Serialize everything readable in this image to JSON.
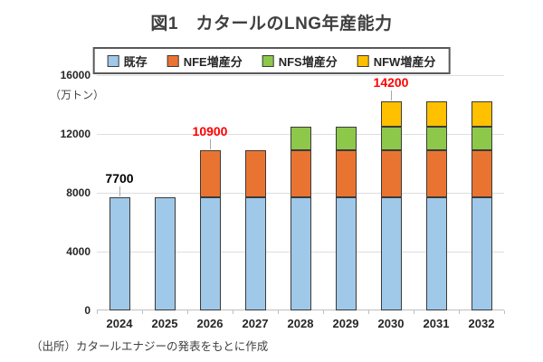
{
  "title": "図1　カタールのLNG年産能力",
  "unit_label": "（万トン）",
  "source_note": "（出所）カタールエナジーの発表をもとに作成",
  "colors": {
    "existing": "#A0C8E8",
    "nfe": "#E97432",
    "nfs": "#8DC84B",
    "nfw": "#FFC000",
    "annotation_red": "#FF0000",
    "annotation_black": "#000000",
    "bar_border": "#3B3B3B"
  },
  "chart_data": {
    "type": "bar",
    "stacked": true,
    "title": "図1　カタールのLNG年産能力",
    "xlabel": "",
    "ylabel": "（万トン）",
    "ylim": [
      0,
      16000
    ],
    "yticks": [
      0,
      4000,
      8000,
      12000,
      16000
    ],
    "grid": true,
    "legend_position": "top",
    "categories": [
      "2024",
      "2025",
      "2026",
      "2027",
      "2028",
      "2029",
      "2030",
      "2031",
      "2032"
    ],
    "series": [
      {
        "name": "既存",
        "color": "#A0C8E8",
        "values": [
          7700,
          7700,
          7700,
          7700,
          7700,
          7700,
          7700,
          7700,
          7700
        ]
      },
      {
        "name": "NFE増産分",
        "color": "#E97432",
        "values": [
          0,
          0,
          3200,
          3200,
          3200,
          3200,
          3200,
          3200,
          3200
        ]
      },
      {
        "name": "NFS増産分",
        "color": "#8DC84B",
        "values": [
          0,
          0,
          0,
          0,
          1600,
          1600,
          1600,
          1600,
          1600
        ]
      },
      {
        "name": "NFW増産分",
        "color": "#FFC000",
        "values": [
          0,
          0,
          0,
          0,
          0,
          0,
          1700,
          1700,
          1700
        ]
      }
    ],
    "totals": [
      7700,
      7700,
      10900,
      10900,
      12500,
      12500,
      14200,
      14200,
      14200
    ],
    "annotations": [
      {
        "category": "2024",
        "text": "7700",
        "color": "#000000"
      },
      {
        "category": "2026",
        "text": "10900",
        "color": "#FF0000"
      },
      {
        "category": "2030",
        "text": "14200",
        "color": "#FF0000"
      }
    ]
  }
}
